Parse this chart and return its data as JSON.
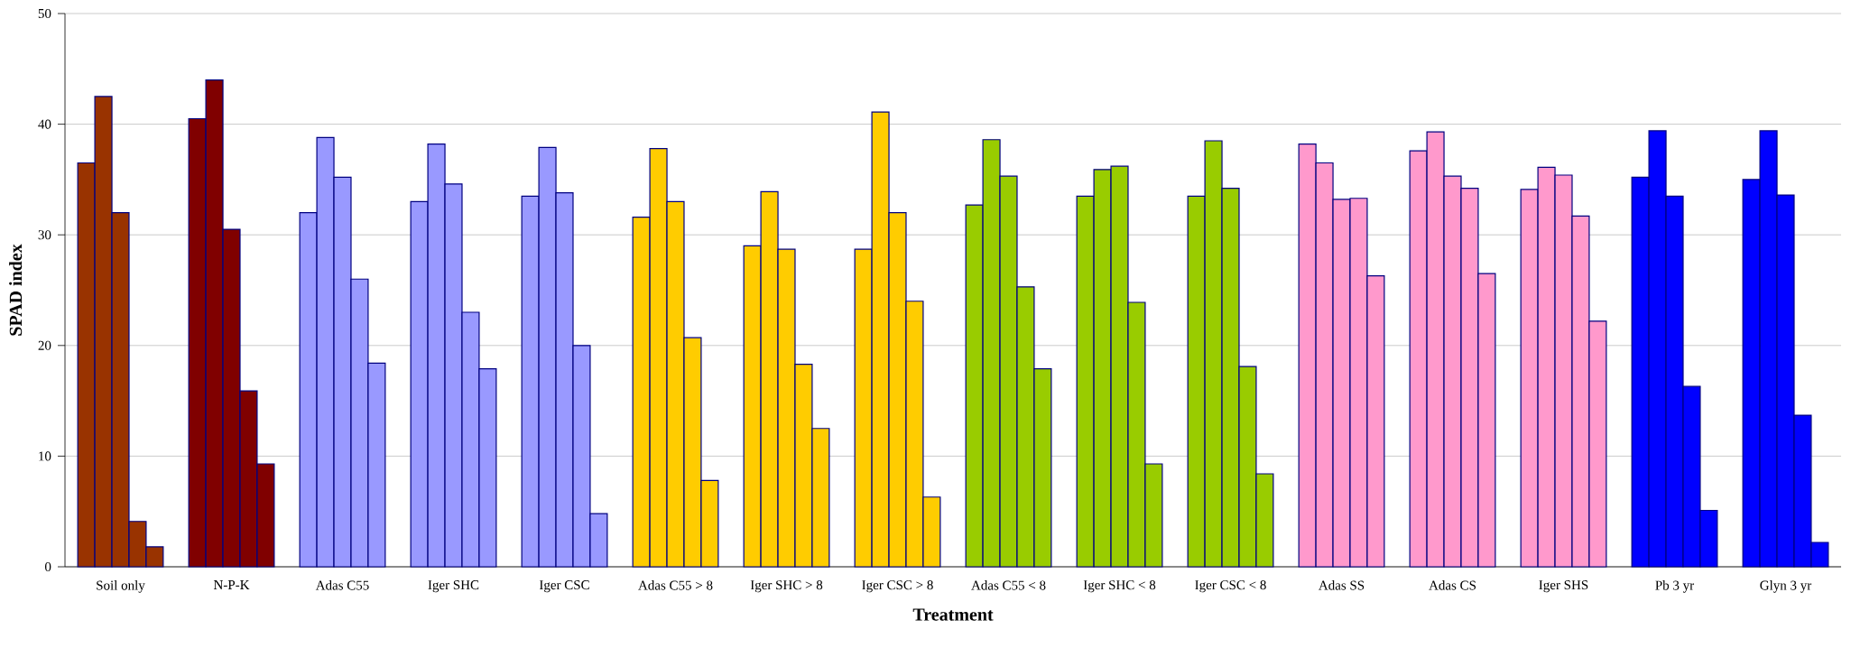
{
  "chart_data": {
    "type": "bar",
    "xlabel": "Treatment",
    "ylabel": "SPAD index",
    "categories": [
      "Soil only",
      "N-P-K",
      "Adas C55",
      "Iger SHC",
      "Iger CSC",
      "Adas C55 > 8",
      "Iger SHC > 8",
      "Iger CSC > 8",
      "Adas C55 < 8",
      "Iger SHC < 8",
      "Iger CSC < 8",
      "Adas SS",
      "Adas CS",
      "Iger SHS",
      "Pb 3 yr",
      "Glyn 3 yr"
    ],
    "series": [
      {
        "colors": [
          "#993300",
          "#800000",
          "#9999ff",
          "#9999ff",
          "#9999ff",
          "#ffcc00",
          "#ffcc00",
          "#ffcc00",
          "#99cc00",
          "#99cc00",
          "#99cc00",
          "#ff99cc",
          "#ff99cc",
          "#ff99cc",
          "#0000ff",
          "#0000ff"
        ],
        "values": [
          36.5,
          40.5,
          32.0,
          33.0,
          33.5,
          31.6,
          29.0,
          28.7,
          32.7,
          33.5,
          33.5,
          38.2,
          37.6,
          34.1,
          35.2,
          35.0
        ]
      },
      {
        "colors": [
          "#993300",
          "#800000",
          "#9999ff",
          "#9999ff",
          "#9999ff",
          "#ffcc00",
          "#ffcc00",
          "#ffcc00",
          "#99cc00",
          "#99cc00",
          "#99cc00",
          "#ff99cc",
          "#ff99cc",
          "#ff99cc",
          "#0000ff",
          "#0000ff"
        ],
        "values": [
          42.5,
          44.0,
          38.8,
          38.2,
          37.9,
          37.8,
          33.9,
          41.1,
          38.6,
          35.9,
          38.5,
          36.5,
          39.3,
          36.1,
          39.4,
          39.4
        ]
      },
      {
        "colors": [
          "#993300",
          "#800000",
          "#9999ff",
          "#9999ff",
          "#9999ff",
          "#ffcc00",
          "#ffcc00",
          "#ffcc00",
          "#99cc00",
          "#99cc00",
          "#99cc00",
          "#ff99cc",
          "#ff99cc",
          "#ff99cc",
          "#0000ff",
          "#0000ff"
        ],
        "values": [
          32.0,
          30.5,
          35.2,
          34.6,
          33.8,
          33.0,
          28.7,
          32.0,
          35.3,
          36.2,
          34.2,
          33.2,
          35.3,
          35.4,
          33.5,
          33.6
        ]
      },
      {
        "colors": [
          "#993300",
          "#800000",
          "#9999ff",
          "#9999ff",
          "#9999ff",
          "#ffcc00",
          "#ffcc00",
          "#ffcc00",
          "#99cc00",
          "#99cc00",
          "#99cc00",
          "#ff99cc",
          "#ff99cc",
          "#ff99cc",
          "#0000ff",
          "#0000ff"
        ],
        "values": [
          4.1,
          15.9,
          26.0,
          23.0,
          20.0,
          20.7,
          18.3,
          24.0,
          25.3,
          23.9,
          18.1,
          33.3,
          34.2,
          31.7,
          16.3,
          13.7
        ]
      },
      {
        "colors": [
          "#993300",
          "#800000",
          "#9999ff",
          "#9999ff",
          "#9999ff",
          "#ffcc00",
          "#ffcc00",
          "#ffcc00",
          "#99cc00",
          "#99cc00",
          "#99cc00",
          "#ff99cc",
          "#ff99cc",
          "#ff99cc",
          "#0000ff",
          "#0000ff"
        ],
        "values": [
          1.8,
          9.3,
          18.4,
          17.9,
          4.8,
          7.8,
          12.5,
          6.3,
          17.9,
          9.3,
          8.4,
          26.3,
          26.5,
          22.2,
          5.1,
          2.2
        ]
      }
    ],
    "ylim": [
      0,
      50
    ],
    "yticks": [
      0,
      10,
      20,
      30,
      40,
      50
    ],
    "grid": "y"
  }
}
